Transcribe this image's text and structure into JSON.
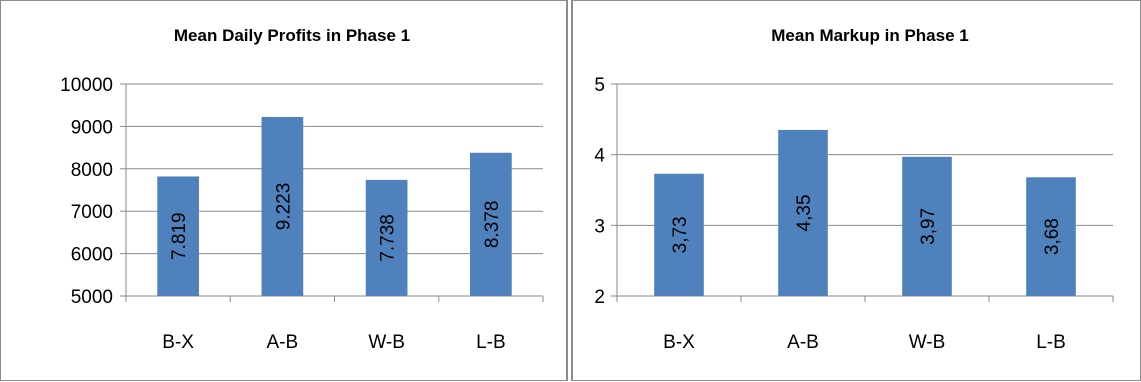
{
  "chart_data": [
    {
      "type": "bar",
      "title": "Mean Daily Profits in Phase 1",
      "categories": [
        "B-X",
        "A-B",
        "W-B",
        "L-B"
      ],
      "values": [
        7819,
        9223,
        7738,
        8378
      ],
      "data_labels": [
        "7.819",
        "9.223",
        "7.738",
        "8.378"
      ],
      "ylim": [
        5000,
        10000
      ],
      "yticks": [
        "5000",
        "6000",
        "7000",
        "8000",
        "9000",
        "10000"
      ],
      "grid": true,
      "bar_color": "#4f81bd",
      "xlabel": "",
      "ylabel": ""
    },
    {
      "type": "bar",
      "title": "Mean Markup in Phase 1",
      "categories": [
        "B-X",
        "A-B",
        "W-B",
        "L-B"
      ],
      "values": [
        3.73,
        4.35,
        3.97,
        3.68
      ],
      "data_labels": [
        "3,73",
        "4,35",
        "3,97",
        "3,68"
      ],
      "ylim": [
        2,
        5
      ],
      "yticks": [
        "2",
        "3",
        "4",
        "5"
      ],
      "grid": true,
      "bar_color": "#4f81bd",
      "xlabel": "",
      "ylabel": ""
    }
  ]
}
